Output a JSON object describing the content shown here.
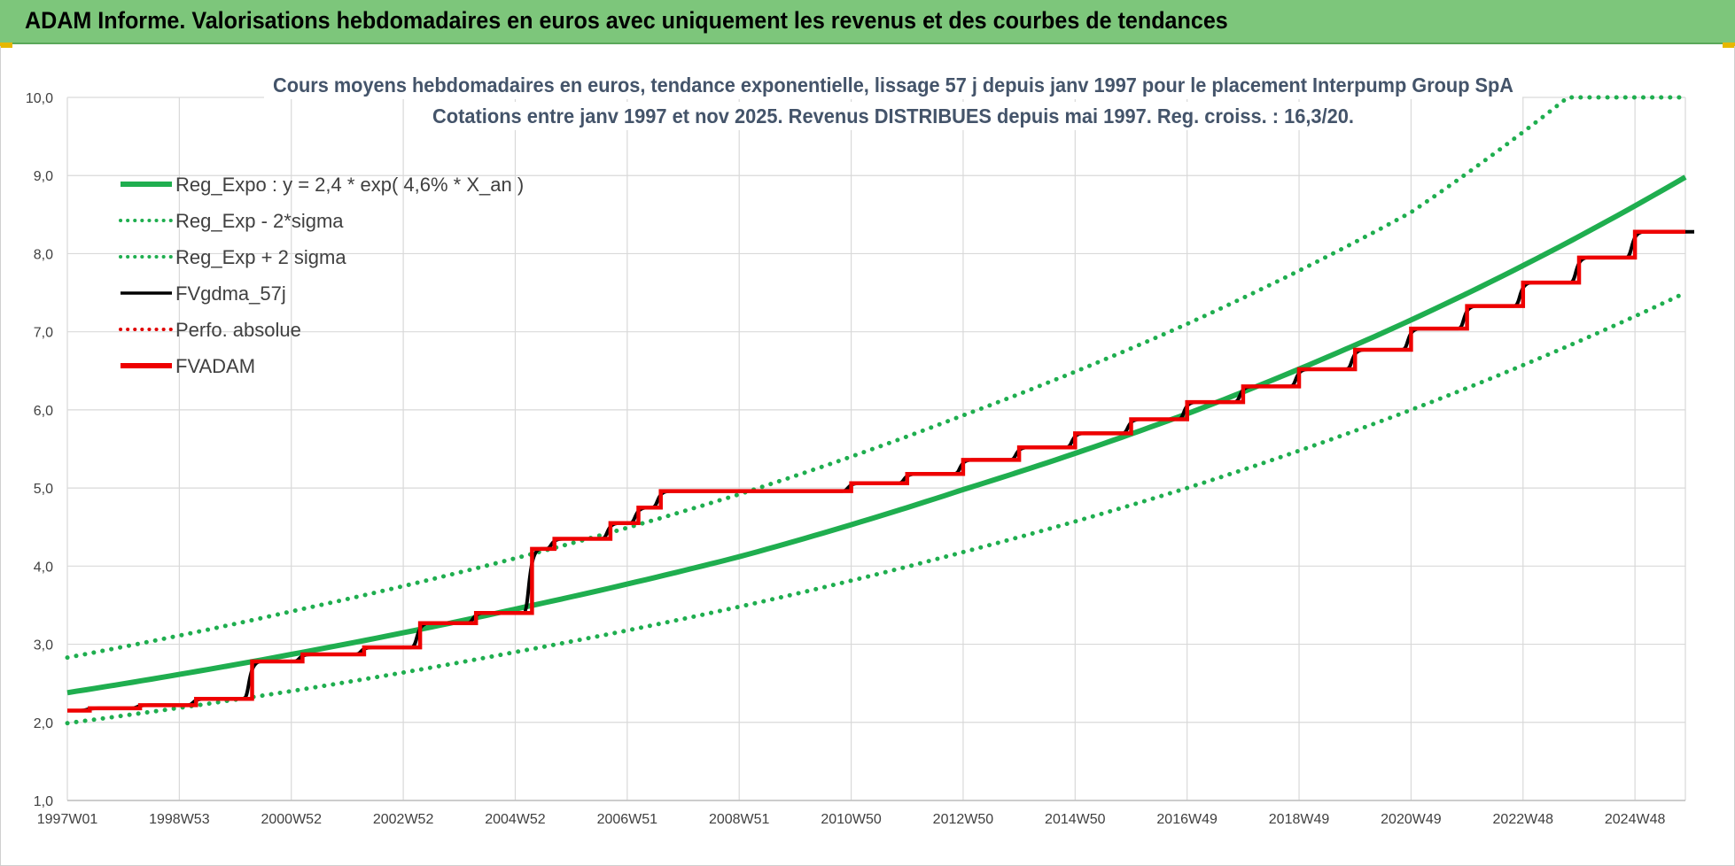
{
  "header": {
    "banner_title": "ADAM Informe. Valorisations hebdomadaires en euros avec uniquement les revenus et des courbes de tendances"
  },
  "colors": {
    "banner": "#7dc67b",
    "reg_expo": "#1fae4f",
    "fv": "#000000",
    "perfo": "#e00000",
    "fvadam": "#ee0000",
    "grid": "#d9d9d9",
    "title": "#44546a"
  },
  "chart_data": {
    "type": "line",
    "title_lines": [
      "Cours moyens hebdomadaires en euros, tendance exponentielle, lissage 57 j depuis janv 1997  pour le placement Interpump Group SpA",
      "Cotations entre janv 1997 et nov 2025. Revenus  DISTRIBUES depuis mai 1997.  Reg. croiss. : 16,3/20."
    ],
    "xlabel": "",
    "ylabel": "",
    "x_ticks": [
      "1997W01",
      "1998W53",
      "2000W52",
      "2002W52",
      "2004W52",
      "2006W51",
      "2008W51",
      "2010W50",
      "2012W50",
      "2014W50",
      "2016W49",
      "2018W49",
      "2020W49",
      "2022W48",
      "2024W48"
    ],
    "x_tick_years": [
      1997.0,
      1999.0,
      2001.0,
      2003.0,
      2005.0,
      2007.0,
      2009.0,
      2011.0,
      2013.0,
      2015.0,
      2017.0,
      2019.0,
      2021.0,
      2023.0,
      2025.0
    ],
    "xlim": [
      1997.0,
      2025.9
    ],
    "ylim": [
      1.0,
      10.0
    ],
    "y_ticks": [
      "1,0",
      "2,0",
      "3,0",
      "4,0",
      "5,0",
      "6,0",
      "7,0",
      "8,0",
      "9,0",
      "10,0"
    ],
    "y_tick_values": [
      1,
      2,
      3,
      4,
      5,
      6,
      7,
      8,
      9,
      10
    ],
    "grid": true,
    "legend": {
      "placement": "top-left",
      "entries": [
        {
          "label": "Reg_Expo : y = 2,4 * exp( 4,6% *  X_an )",
          "style": "solid-thick",
          "color": "#1fae4f"
        },
        {
          "label": "Reg_Exp - 2*sigma",
          "style": "dotted",
          "color": "#1fae4f"
        },
        {
          "label": "Reg_Exp + 2 sigma",
          "style": "dotted",
          "color": "#1fae4f"
        },
        {
          "label": "FVgdma_57j",
          "style": "solid",
          "color": "#000000"
        },
        {
          "label": "Perfo. absolue",
          "style": "dotted",
          "color": "#e00000"
        },
        {
          "label": "FVADAM",
          "style": "solid-thick",
          "color": "#ee0000"
        }
      ]
    },
    "series": [
      {
        "name": "Reg_Expo : y = 2,4 * exp( 4,6% *  X_an )",
        "x": [
          1997.0,
          2001.0,
          2005.0,
          2009.0,
          2013.0,
          2017.0,
          2021.0,
          2025.9
        ],
        "values": [
          2.38,
          2.87,
          3.45,
          4.12,
          4.98,
          5.95,
          7.15,
          8.98
        ]
      },
      {
        "name": "Reg_Exp - 2*sigma",
        "x": [
          1997.0,
          2001.0,
          2005.0,
          2009.0,
          2013.0,
          2017.0,
          2021.0,
          2025.9
        ],
        "values": [
          1.99,
          2.4,
          2.9,
          3.48,
          4.18,
          5.0,
          6.0,
          7.5
        ]
      },
      {
        "name": "Reg_Exp + 2 sigma",
        "x": [
          1997.0,
          2001.0,
          2005.0,
          2009.0,
          2013.0,
          2017.0,
          2021.0,
          2023.8,
          2025.9
        ],
        "values": [
          2.83,
          3.42,
          4.1,
          4.92,
          5.93,
          7.1,
          8.53,
          10.0,
          10.0
        ]
      },
      {
        "name": "FVADAM",
        "x": [
          1997.0,
          1997.4,
          1998.3,
          1999.3,
          2000.3,
          2001.2,
          2002.3,
          2003.3,
          2004.3,
          2005.3,
          2005.7,
          2006.7,
          2007.2,
          2007.6,
          2011.0,
          2012.0,
          2013.0,
          2014.0,
          2015.0,
          2016.0,
          2017.0,
          2018.0,
          2019.0,
          2020.0,
          2021.0,
          2022.0,
          2023.0,
          2024.0,
          2025.0,
          2025.9
        ],
        "values": [
          2.15,
          2.18,
          2.22,
          2.3,
          2.78,
          2.87,
          2.96,
          3.27,
          3.4,
          4.22,
          4.35,
          4.55,
          4.75,
          4.96,
          5.06,
          5.18,
          5.36,
          5.52,
          5.7,
          5.88,
          6.1,
          6.3,
          6.52,
          6.77,
          7.04,
          7.33,
          7.63,
          7.95,
          8.28,
          8.28
        ]
      }
    ]
  }
}
